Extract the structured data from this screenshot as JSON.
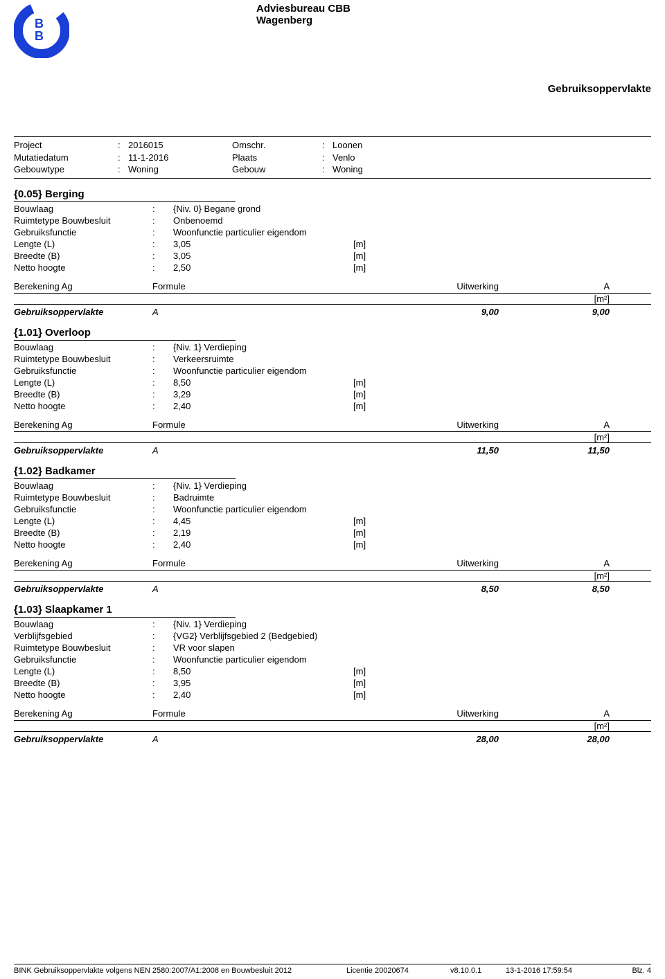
{
  "header": {
    "company_name": "Adviesbureau CBB",
    "company_city": "Wagenberg",
    "top_right_title": "Gebruiksoppervlakte",
    "logo_color": "#1a3fd6"
  },
  "meta": {
    "rows": [
      {
        "label": "Project",
        "val": "2016015",
        "label2": "Omschr.",
        "val2": "Loonen"
      },
      {
        "label": "Mutatiedatum",
        "val": "11-1-2016",
        "label2": "Plaats",
        "val2": "Venlo"
      },
      {
        "label": "Gebouwtype",
        "val": "Woning",
        "label2": "Gebouw",
        "val2": "Woning"
      }
    ]
  },
  "sections": [
    {
      "title": "{0.05} Berging",
      "props": [
        {
          "label": "Bouwlaag",
          "val": "{Niv. 0} Begane grond",
          "unit": ""
        },
        {
          "label": "Ruimtetype Bouwbesluit",
          "val": "Onbenoemd",
          "unit": ""
        },
        {
          "label": "Gebruiksfunctie",
          "val": "Woonfunctie particulier eigendom",
          "unit": ""
        },
        {
          "label": "Lengte (L)",
          "val": "3,05",
          "unit": "[m]"
        },
        {
          "label": "Breedte (B)",
          "val": "3,05",
          "unit": "[m]"
        },
        {
          "label": "Netto hoogte",
          "val": "2,50",
          "unit": "[m]"
        }
      ],
      "calc_header": {
        "c1": "Berekening Ag",
        "c2": "Formule",
        "c3": "Uitwerking",
        "c4": "A",
        "c4_unit": "[m²]"
      },
      "result": {
        "label": "Gebruiksoppervlakte",
        "letter": "A",
        "uitwerking": "9,00",
        "val": "9,00"
      }
    },
    {
      "title": "{1.01} Overloop",
      "props": [
        {
          "label": "Bouwlaag",
          "val": "{Niv. 1} Verdieping",
          "unit": ""
        },
        {
          "label": "Ruimtetype Bouwbesluit",
          "val": "Verkeersruimte",
          "unit": ""
        },
        {
          "label": "Gebruiksfunctie",
          "val": "Woonfunctie particulier eigendom",
          "unit": ""
        },
        {
          "label": "Lengte (L)",
          "val": "8,50",
          "unit": "[m]"
        },
        {
          "label": "Breedte (B)",
          "val": "3,29",
          "unit": "[m]"
        },
        {
          "label": "Netto hoogte",
          "val": "2,40",
          "unit": "[m]"
        }
      ],
      "calc_header": {
        "c1": "Berekening Ag",
        "c2": "Formule",
        "c3": "Uitwerking",
        "c4": "A",
        "c4_unit": "[m²]"
      },
      "result": {
        "label": "Gebruiksoppervlakte",
        "letter": "A",
        "uitwerking": "11,50",
        "val": "11,50"
      }
    },
    {
      "title": "{1.02} Badkamer",
      "props": [
        {
          "label": "Bouwlaag",
          "val": "{Niv. 1} Verdieping",
          "unit": ""
        },
        {
          "label": "Ruimtetype Bouwbesluit",
          "val": "Badruimte",
          "unit": ""
        },
        {
          "label": "Gebruiksfunctie",
          "val": "Woonfunctie particulier eigendom",
          "unit": ""
        },
        {
          "label": "Lengte (L)",
          "val": "4,45",
          "unit": "[m]"
        },
        {
          "label": "Breedte (B)",
          "val": "2,19",
          "unit": "[m]"
        },
        {
          "label": "Netto hoogte",
          "val": "2,40",
          "unit": "[m]"
        }
      ],
      "calc_header": {
        "c1": "Berekening Ag",
        "c2": "Formule",
        "c3": "Uitwerking",
        "c4": "A",
        "c4_unit": "[m²]"
      },
      "result": {
        "label": "Gebruiksoppervlakte",
        "letter": "A",
        "uitwerking": "8,50",
        "val": "8,50"
      }
    },
    {
      "title": "{1.03} Slaapkamer 1",
      "props": [
        {
          "label": "Bouwlaag",
          "val": "{Niv. 1} Verdieping",
          "unit": ""
        },
        {
          "label": "Verblijfsgebied",
          "val": "{VG2} Verblijfsgebied 2 (Bedgebied)",
          "unit": ""
        },
        {
          "label": "Ruimtetype Bouwbesluit",
          "val": "VR voor slapen",
          "unit": ""
        },
        {
          "label": "Gebruiksfunctie",
          "val": "Woonfunctie particulier eigendom",
          "unit": ""
        },
        {
          "label": "Lengte (L)",
          "val": "8,50",
          "unit": "[m]"
        },
        {
          "label": "Breedte (B)",
          "val": "3,95",
          "unit": "[m]"
        },
        {
          "label": "Netto hoogte",
          "val": "2,40",
          "unit": "[m]"
        }
      ],
      "calc_header": {
        "c1": "Berekening Ag",
        "c2": "Formule",
        "c3": "Uitwerking",
        "c4": "A",
        "c4_unit": "[m²]"
      },
      "result": {
        "label": "Gebruiksoppervlakte",
        "letter": "A",
        "uitwerking": "28,00",
        "val": "28,00"
      }
    }
  ],
  "footer": {
    "left": "BINK Gebruiksoppervlakte volgens NEN 2580:2007/A1:2008 en Bouwbesluit 2012",
    "licentie": "Licentie 20020674",
    "version": "v8.10.0.1",
    "datetime": "13-1-2016  17:59:54",
    "page": "Blz. 4"
  }
}
